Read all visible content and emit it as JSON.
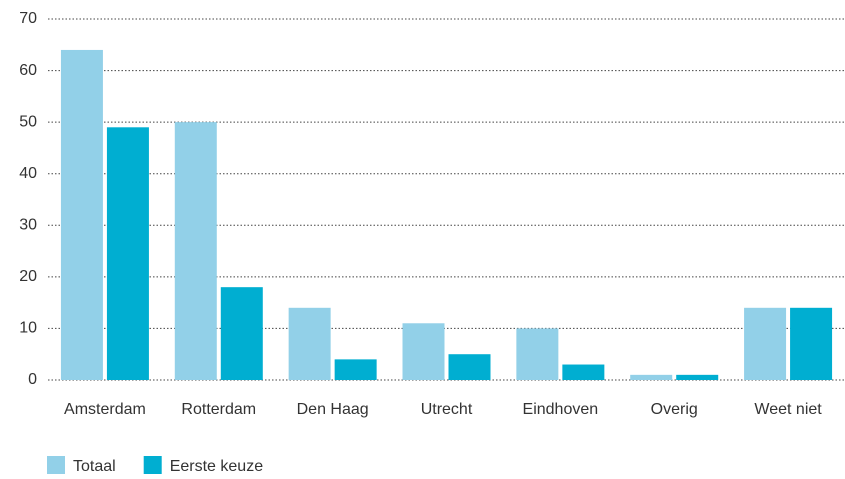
{
  "chart_data": {
    "type": "bar",
    "categories": [
      "Amsterdam",
      "Rotterdam",
      "Den Haag",
      "Utrecht",
      "Eindhoven",
      "Overig",
      "Weet niet"
    ],
    "series": [
      {
        "name": "Totaal",
        "color": "#92d0e8",
        "values": [
          64,
          50,
          14,
          11,
          10,
          1,
          14
        ]
      },
      {
        "name": "Eerste keuze",
        "color": "#00aed1",
        "values": [
          49,
          18,
          4,
          5,
          3,
          1,
          14
        ]
      }
    ],
    "ylim": [
      0,
      70
    ],
    "yticks": [
      0,
      10,
      20,
      30,
      40,
      50,
      60,
      70
    ],
    "grid": true,
    "legend": "bottom"
  }
}
